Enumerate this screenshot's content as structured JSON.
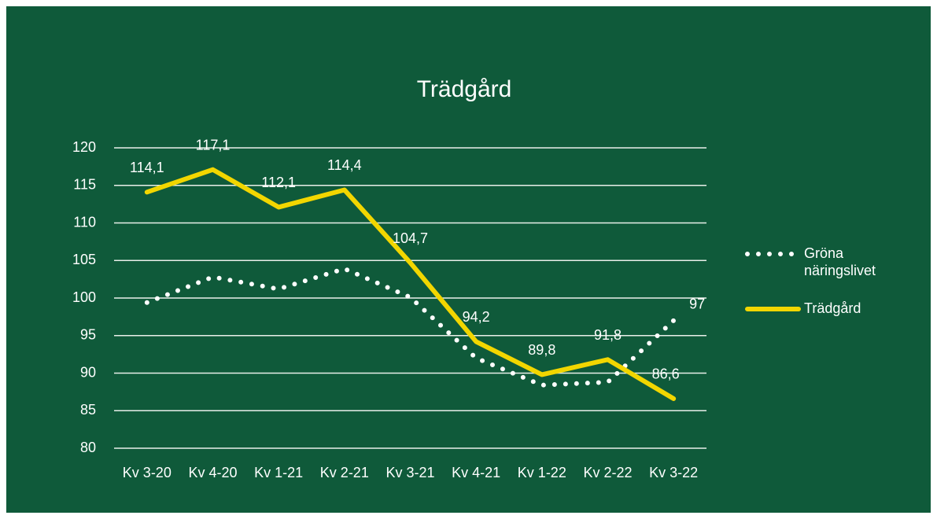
{
  "chart_data": {
    "type": "line",
    "title": "Trädgård",
    "categories": [
      "Kv 3-20",
      "Kv 4-20",
      "Kv 1-21",
      "Kv 2-21",
      "Kv 3-21",
      "Kv 4-21",
      "Kv 1-22",
      "Kv 2-22",
      "Kv 3-22"
    ],
    "series": [
      {
        "name": "Gröna näringslivet",
        "color": "#ffffff",
        "style": "dotted",
        "values": [
          99.4,
          102.8,
          101.2,
          103.9,
          100.1,
          92.0,
          88.4,
          88.8,
          97
        ],
        "value_labels": [
          null,
          null,
          null,
          null,
          null,
          null,
          null,
          null,
          "97"
        ]
      },
      {
        "name": "Trädgård",
        "color": "#f2d600",
        "style": "solid",
        "values": [
          114.1,
          117.1,
          112.1,
          114.4,
          104.7,
          94.2,
          89.8,
          91.8,
          86.6
        ],
        "value_labels": [
          "114,1",
          "117,1",
          "112,1",
          "114,4",
          "104,7",
          "94,2",
          "89,8",
          "91,8",
          "86,6"
        ]
      }
    ],
    "ylim": [
      80,
      120
    ],
    "yticks": [
      80,
      85,
      90,
      95,
      100,
      105,
      110,
      115,
      120
    ],
    "grid": true,
    "legend": "right"
  }
}
